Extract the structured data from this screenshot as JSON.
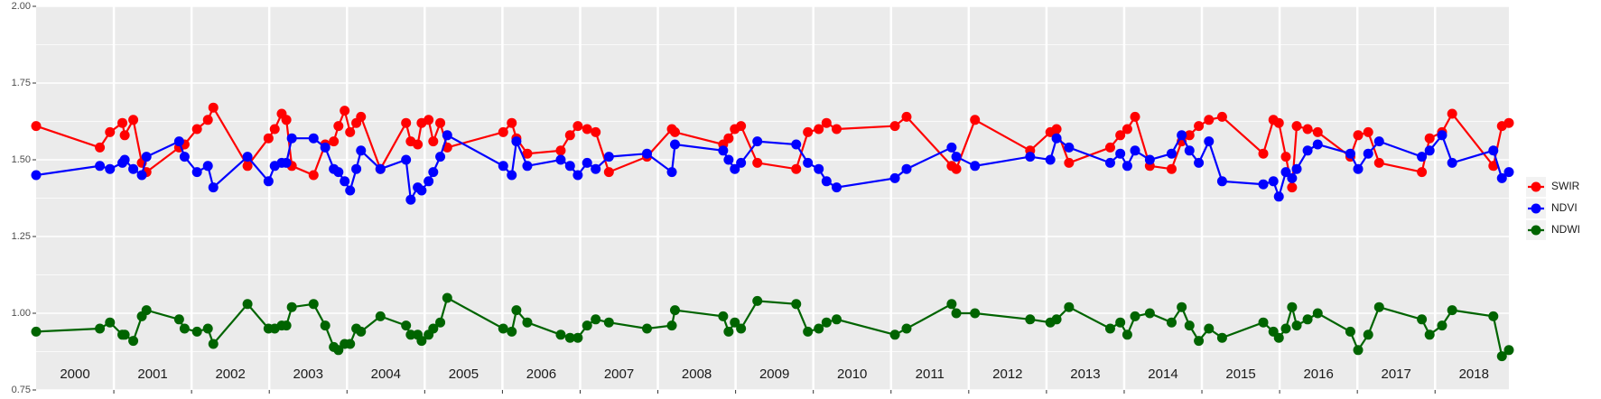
{
  "chart_data": {
    "type": "line",
    "x": [
      2000.0,
      2000.82,
      2000.95,
      2001.11,
      2001.14,
      2001.25,
      2001.36,
      2001.42,
      2001.84,
      2001.91,
      2002.07,
      2002.21,
      2002.28,
      2002.72,
      2002.99,
      2003.07,
      2003.16,
      2003.22,
      2003.29,
      2003.57,
      2003.72,
      2003.83,
      2003.89,
      2003.97,
      2004.04,
      2004.12,
      2004.18,
      2004.43,
      2004.76,
      2004.82,
      2004.91,
      2004.96,
      2005.05,
      2005.11,
      2005.2,
      2005.29,
      2006.01,
      2006.12,
      2006.18,
      2006.32,
      2006.75,
      2006.87,
      2006.97,
      2007.09,
      2007.2,
      2007.37,
      2007.86,
      2008.18,
      2008.22,
      2008.84,
      2008.91,
      2008.99,
      2009.07,
      2009.28,
      2009.78,
      2009.93,
      2010.07,
      2010.17,
      2010.3,
      2011.05,
      2011.2,
      2011.78,
      2011.84,
      2012.08,
      2012.79,
      2013.05,
      2013.13,
      2013.29,
      2013.82,
      2013.95,
      2014.04,
      2014.14,
      2014.33,
      2014.61,
      2014.74,
      2014.84,
      2014.96,
      2015.09,
      2015.26,
      2015.79,
      2015.92,
      2015.99,
      2016.08,
      2016.16,
      2016.22,
      2016.36,
      2016.49,
      2016.91,
      2017.01,
      2017.14,
      2017.28,
      2017.83,
      2017.93,
      2018.09,
      2018.22,
      2018.75,
      2018.86,
      2018.95
    ],
    "series": [
      {
        "name": "SWIR",
        "color": "#ff0000",
        "values": [
          1.61,
          1.54,
          1.59,
          1.62,
          1.58,
          1.63,
          1.49,
          1.46,
          1.54,
          1.55,
          1.6,
          1.63,
          1.67,
          1.48,
          1.57,
          1.6,
          1.65,
          1.63,
          1.48,
          1.45,
          1.55,
          1.56,
          1.61,
          1.66,
          1.59,
          1.62,
          1.64,
          1.47,
          1.62,
          1.56,
          1.55,
          1.62,
          1.63,
          1.56,
          1.62,
          1.54,
          1.59,
          1.62,
          1.57,
          1.52,
          1.53,
          1.58,
          1.61,
          1.6,
          1.59,
          1.46,
          1.51,
          1.6,
          1.59,
          1.55,
          1.57,
          1.6,
          1.61,
          1.49,
          1.47,
          1.59,
          1.6,
          1.62,
          1.6,
          1.61,
          1.64,
          1.48,
          1.47,
          1.63,
          1.53,
          1.59,
          1.6,
          1.49,
          1.54,
          1.58,
          1.6,
          1.64,
          1.48,
          1.47,
          1.56,
          1.58,
          1.61,
          1.63,
          1.64,
          1.52,
          1.63,
          1.62,
          1.51,
          1.41,
          1.61,
          1.6,
          1.59,
          1.51,
          1.58,
          1.59,
          1.49,
          1.46,
          1.57,
          1.59,
          1.65,
          1.48,
          1.61,
          1.62
        ]
      },
      {
        "name": "NDVI",
        "color": "#0000ff",
        "values": [
          1.45,
          1.48,
          1.47,
          1.49,
          1.5,
          1.47,
          1.45,
          1.51,
          1.56,
          1.51,
          1.46,
          1.48,
          1.41,
          1.51,
          1.43,
          1.48,
          1.49,
          1.49,
          1.57,
          1.57,
          1.54,
          1.47,
          1.46,
          1.43,
          1.4,
          1.47,
          1.53,
          1.47,
          1.5,
          1.37,
          1.41,
          1.4,
          1.43,
          1.46,
          1.51,
          1.58,
          1.48,
          1.45,
          1.56,
          1.48,
          1.5,
          1.48,
          1.45,
          1.49,
          1.47,
          1.51,
          1.52,
          1.46,
          1.55,
          1.53,
          1.5,
          1.47,
          1.49,
          1.56,
          1.55,
          1.49,
          1.47,
          1.43,
          1.41,
          1.44,
          1.47,
          1.54,
          1.51,
          1.48,
          1.51,
          1.5,
          1.57,
          1.54,
          1.49,
          1.52,
          1.48,
          1.53,
          1.5,
          1.52,
          1.58,
          1.53,
          1.49,
          1.56,
          1.43,
          1.42,
          1.43,
          1.38,
          1.46,
          1.44,
          1.47,
          1.53,
          1.55,
          1.52,
          1.47,
          1.52,
          1.56,
          1.51,
          1.53,
          1.58,
          1.49,
          1.53,
          1.44,
          1.46
        ]
      },
      {
        "name": "NDWI",
        "color": "#006400",
        "values": [
          0.94,
          0.95,
          0.97,
          0.93,
          0.93,
          0.91,
          0.99,
          1.01,
          0.98,
          0.95,
          0.94,
          0.95,
          0.9,
          1.03,
          0.95,
          0.95,
          0.96,
          0.96,
          1.02,
          1.03,
          0.96,
          0.89,
          0.88,
          0.9,
          0.9,
          0.95,
          0.94,
          0.99,
          0.96,
          0.93,
          0.93,
          0.91,
          0.93,
          0.95,
          0.97,
          1.05,
          0.95,
          0.94,
          1.01,
          0.97,
          0.93,
          0.92,
          0.92,
          0.96,
          0.98,
          0.97,
          0.95,
          0.96,
          1.01,
          0.99,
          0.94,
          0.97,
          0.95,
          1.04,
          1.03,
          0.94,
          0.95,
          0.97,
          0.98,
          0.93,
          0.95,
          1.03,
          1.0,
          1.0,
          0.98,
          0.97,
          0.98,
          1.02,
          0.95,
          0.97,
          0.93,
          0.99,
          1.0,
          0.97,
          1.02,
          0.96,
          0.91,
          0.95,
          0.92,
          0.97,
          0.94,
          0.92,
          0.95,
          1.02,
          0.96,
          0.98,
          1.0,
          0.94,
          0.88,
          0.93,
          1.02,
          0.98,
          0.93,
          0.96,
          1.01,
          0.99,
          0.86,
          0.88
        ]
      }
    ],
    "xlim": [
      2000,
      2018.95
    ],
    "xticks": [
      {
        "value": 2000.5,
        "label": "2000"
      },
      {
        "value": 2001.5,
        "label": "2001"
      },
      {
        "value": 2002.5,
        "label": "2002"
      },
      {
        "value": 2003.5,
        "label": "2003"
      },
      {
        "value": 2004.5,
        "label": "2004"
      },
      {
        "value": 2005.5,
        "label": "2005"
      },
      {
        "value": 2006.5,
        "label": "2006"
      },
      {
        "value": 2007.5,
        "label": "2007"
      },
      {
        "value": 2008.5,
        "label": "2008"
      },
      {
        "value": 2009.5,
        "label": "2009"
      },
      {
        "value": 2010.5,
        "label": "2010"
      },
      {
        "value": 2011.5,
        "label": "2011"
      },
      {
        "value": 2012.5,
        "label": "2012"
      },
      {
        "value": 2013.5,
        "label": "2013"
      },
      {
        "value": 2014.5,
        "label": "2014"
      },
      {
        "value": 2015.5,
        "label": "2015"
      },
      {
        "value": 2016.5,
        "label": "2016"
      },
      {
        "value": 2017.5,
        "label": "2017"
      },
      {
        "value": 2018.5,
        "label": "2018"
      }
    ],
    "xgrid": [
      2001,
      2002,
      2003,
      2004,
      2005,
      2006,
      2007,
      2008,
      2009,
      2010,
      2011,
      2012,
      2013,
      2014,
      2015,
      2016,
      2017,
      2018
    ],
    "ylim": [
      0.75,
      2
    ],
    "yticks": [
      0.75,
      {
        "value": 1,
        "label": "1.00"
      },
      1.25,
      {
        "value": 1.5,
        "label": "1.50"
      },
      1.75,
      {
        "value": 2,
        "label": "2.00"
      }
    ],
    "yminor_grid": [
      0.875,
      1.125,
      1.375,
      1.625,
      1.875
    ],
    "grid": true,
    "legend": "right"
  }
}
